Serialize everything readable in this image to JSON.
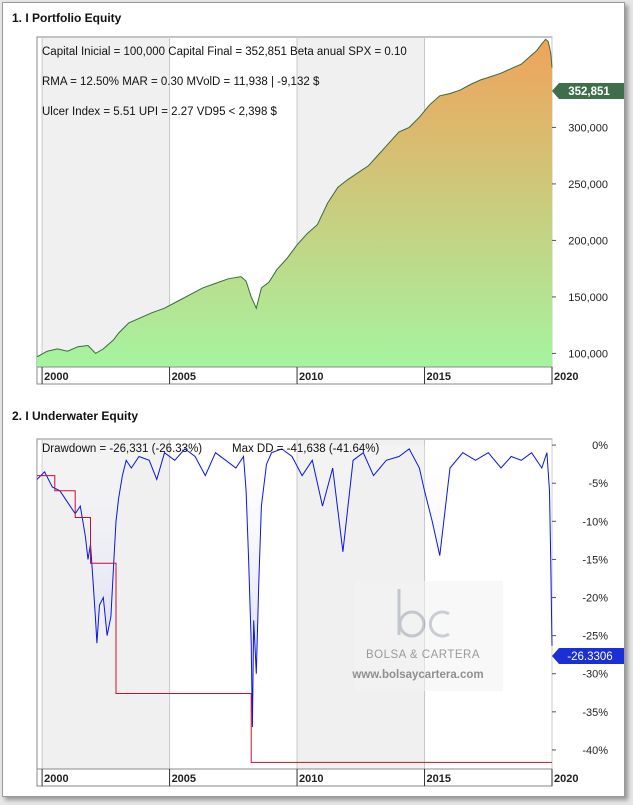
{
  "chart_data": [
    {
      "type": "area",
      "pane_title": "1. I Portfolio Equity",
      "annotations": [
        "Capital Inicial = 100,000  Capital Final = 352,851   Beta anual SPX = 0.10",
        "RMA = 12.50%   MAR = 0.30   MVolD = 11,938 | -9,132 $",
        "Ulcer Index = 5.51   UPI = 2.27   VD95 < 2,398 $"
      ],
      "last_value_label": "352,851",
      "xlim": [
        1999.8,
        2020.0
      ],
      "ylim": [
        88000,
        380000
      ],
      "x_ticks": [
        "2000",
        "2005",
        "2010",
        "2015",
        "2020"
      ],
      "y_ticks": [
        "100,000",
        "150,000",
        "200,000",
        "250,000",
        "300,000"
      ],
      "shaded_year_bands": [
        [
          2000,
          2005
        ],
        [
          2010,
          2015
        ]
      ],
      "colors": {
        "fill_top": "#f0a35a",
        "fill_bottom": "#a5f4a0",
        "line": "#3a6b3a",
        "label_bg": "#3f6e4a"
      },
      "x": [
        1999.8,
        2000.2,
        2000.6,
        2001.0,
        2001.4,
        2001.8,
        2002.1,
        2002.4,
        2002.8,
        2003.0,
        2003.4,
        2003.8,
        2004.3,
        2004.8,
        2005.3,
        2005.8,
        2006.3,
        2006.8,
        2007.3,
        2007.8,
        2008.0,
        2008.2,
        2008.4,
        2008.6,
        2008.9,
        2009.2,
        2009.6,
        2010.0,
        2010.4,
        2010.8,
        2011.2,
        2011.6,
        2012.0,
        2012.4,
        2012.8,
        2013.2,
        2013.6,
        2014.0,
        2014.4,
        2014.8,
        2015.2,
        2015.6,
        2016.0,
        2016.4,
        2016.8,
        2017.2,
        2017.6,
        2018.0,
        2018.4,
        2018.8,
        2019.1,
        2019.4,
        2019.6,
        2019.75,
        2019.85,
        2019.95,
        2020.0
      ],
      "y": [
        97000,
        102000,
        104000,
        102000,
        106000,
        107000,
        100000,
        104000,
        112000,
        118000,
        127000,
        131000,
        136000,
        140000,
        146000,
        152000,
        158000,
        162000,
        166000,
        168000,
        164000,
        150000,
        140000,
        158000,
        163000,
        174000,
        184000,
        196000,
        206000,
        214000,
        233000,
        247000,
        254000,
        260000,
        266000,
        276000,
        286000,
        296000,
        300000,
        309000,
        320000,
        328000,
        330000,
        333000,
        338000,
        342000,
        345000,
        348000,
        352000,
        356000,
        362000,
        368000,
        374000,
        378000,
        376000,
        366000,
        352851
      ]
    },
    {
      "type": "area",
      "pane_title": "2. I Underwater Equity",
      "annotations": [
        "Drawdown = -26,331 (-26.33%)",
        "Max DD = -41,638 (-41.64%)"
      ],
      "last_value_label": "-26.3306",
      "xlim": [
        1999.8,
        2020.0
      ],
      "ylim": [
        -42.5,
        0.8
      ],
      "x_ticks": [
        "2000",
        "2005",
        "2010",
        "2015",
        "2020"
      ],
      "y_ticks": [
        "0%",
        "-5%",
        "-10%",
        "-15%",
        "-20%",
        "-25%",
        "-30%",
        "-35%",
        "-40%"
      ],
      "shaded_year_bands": [
        [
          2000,
          2005
        ],
        [
          2010,
          2015
        ]
      ],
      "watermark": {
        "brand": "BOLSA & CARTERA",
        "url": "www.bolsaycartera.com"
      },
      "colors": {
        "line": "#0a16e6",
        "fill": "#c9ccf2",
        "maxdd": "#c8102e",
        "label_bg": "#1b2fd6"
      },
      "x": [
        1999.8,
        2000.1,
        2000.4,
        2000.7,
        2001.0,
        2001.3,
        2001.5,
        2001.7,
        2001.8,
        2001.9,
        2002.0,
        2002.1,
        2002.15,
        2002.25,
        2002.4,
        2002.55,
        2002.7,
        2002.8,
        2002.9,
        2003.0,
        2003.15,
        2003.3,
        2003.5,
        2003.8,
        2004.2,
        2004.5,
        2004.8,
        2005.2,
        2005.6,
        2006.0,
        2006.4,
        2006.8,
        2007.2,
        2007.6,
        2007.9,
        2008.0,
        2008.1,
        2008.2,
        2008.25,
        2008.3,
        2008.4,
        2008.5,
        2008.6,
        2008.8,
        2009.0,
        2009.4,
        2009.8,
        2010.2,
        2010.6,
        2011.0,
        2011.4,
        2011.8,
        2012.2,
        2012.6,
        2013.0,
        2013.5,
        2014.0,
        2014.4,
        2014.8,
        2015.0,
        2015.3,
        2015.6,
        2016.0,
        2016.5,
        2017.0,
        2017.5,
        2018.0,
        2018.4,
        2018.8,
        2019.2,
        2019.6,
        2019.8,
        2019.9,
        2019.95,
        2020.0
      ],
      "y": [
        -4.5,
        -3.5,
        -5.5,
        -6.0,
        -7.5,
        -9.0,
        -8.0,
        -12.0,
        -15.0,
        -13.0,
        -18.0,
        -23.0,
        -26.0,
        -21.0,
        -20.0,
        -25.0,
        -22.5,
        -16.0,
        -10.0,
        -7.0,
        -4.0,
        -2.0,
        -3.0,
        -1.5,
        -2.0,
        -4.5,
        -1.0,
        -2.0,
        -0.5,
        -1.5,
        -4.0,
        -1.0,
        -2.0,
        -3.0,
        -1.5,
        -6.0,
        -15.0,
        -26.0,
        -37.0,
        -23.0,
        -30.0,
        -18.0,
        -8.0,
        -2.5,
        -1.0,
        -0.5,
        -1.5,
        -4.0,
        -2.0,
        -8.0,
        -3.0,
        -14.0,
        -2.0,
        -1.0,
        -4.0,
        -2.0,
        -1.5,
        -0.5,
        -3.0,
        -6.0,
        -10.0,
        -14.5,
        -3.0,
        -1.0,
        -2.0,
        -1.0,
        -3.0,
        -1.5,
        -2.0,
        -1.0,
        -3.0,
        -1.0,
        -6.0,
        -15.0,
        -26.3306
      ],
      "maxdd_steps": [
        [
          1999.8,
          -4.0
        ],
        [
          2000.5,
          -6.0
        ],
        [
          2001.3,
          -9.5
        ],
        [
          2001.9,
          -15.5
        ],
        [
          2002.9,
          -32.6
        ],
        [
          2008.2,
          -41.64
        ],
        [
          2020.0,
          -41.64
        ]
      ]
    }
  ]
}
